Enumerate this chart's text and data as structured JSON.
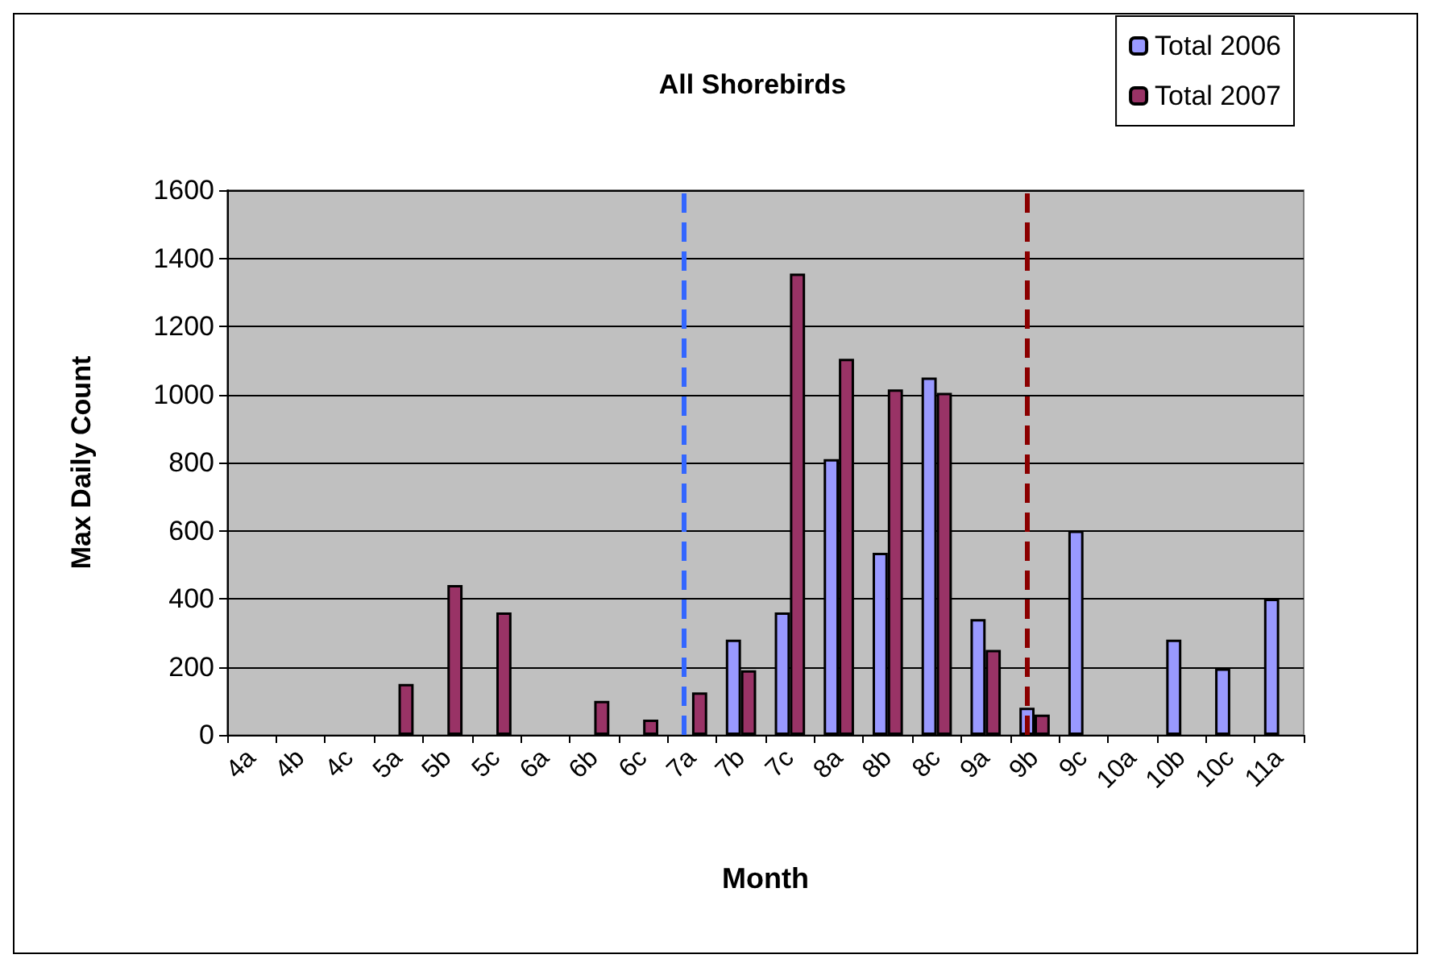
{
  "chart_data": {
    "type": "bar",
    "title": "All Shorebirds",
    "xlabel": "Month",
    "ylabel": "Max Daily Count",
    "categories": [
      "4a",
      "4b",
      "4c",
      "5a",
      "5b",
      "5c",
      "6a",
      "6b",
      "6c",
      "7a",
      "7b",
      "7c",
      "8a",
      "8b",
      "8c",
      "9a",
      "9b",
      "9c",
      "10a",
      "10b",
      "10c",
      "11a"
    ],
    "series": [
      {
        "name": "Total 2006",
        "color": "#9999ff",
        "values": [
          null,
          null,
          null,
          null,
          null,
          null,
          null,
          null,
          null,
          null,
          280,
          360,
          810,
          535,
          1050,
          340,
          80,
          600,
          null,
          280,
          195,
          400
        ]
      },
      {
        "name": "Total 2007",
        "color": "#993366",
        "values": [
          null,
          null,
          null,
          150,
          440,
          360,
          null,
          100,
          45,
          125,
          190,
          1355,
          1105,
          1015,
          1005,
          250,
          60,
          null,
          null,
          null,
          null,
          null
        ]
      }
    ],
    "ylim": [
      0,
      1600
    ],
    "yticks": [
      0,
      200,
      400,
      600,
      800,
      1000,
      1200,
      1400,
      1600
    ],
    "grid": "y",
    "legend": "top right",
    "ref_lines": [
      {
        "axis": "x",
        "value": "7a",
        "color": "#3366ff",
        "line_style": "dashed"
      },
      {
        "axis": "x",
        "value": "9b",
        "color": "#8b0000",
        "line_style": "dashed"
      }
    ]
  }
}
